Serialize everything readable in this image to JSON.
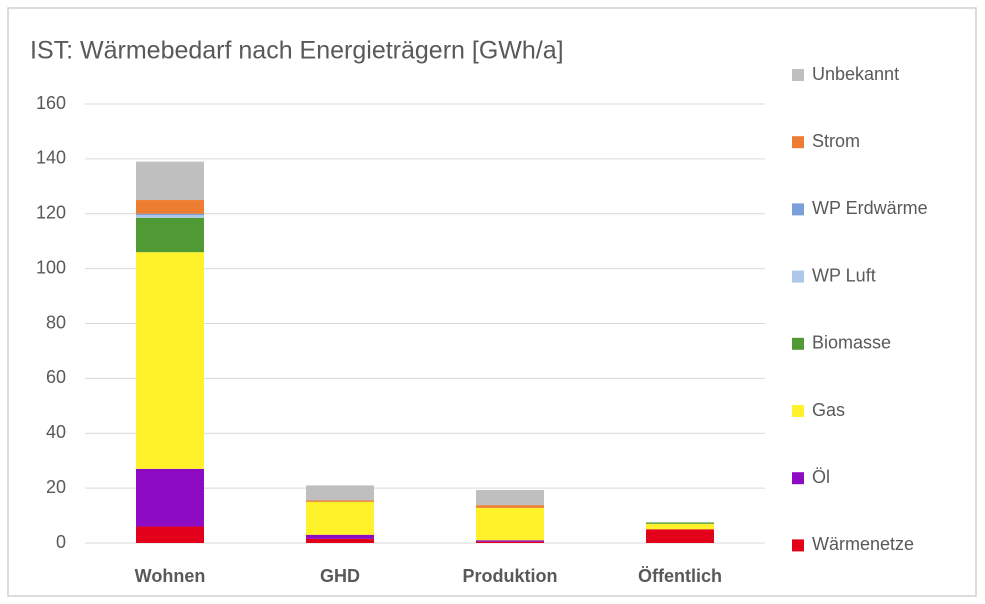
{
  "chart_data": {
    "type": "stacked_bar",
    "title": "IST: Wärmebedarf nach Energieträgern [GWh/a]",
    "categories": [
      "Wohnen",
      "GHD",
      "Produktion",
      "Öffentlich"
    ],
    "series": [
      {
        "name": "Wärmenetze",
        "color": "#e3001b",
        "values": [
          6,
          1.5,
          0.5,
          5
        ]
      },
      {
        "name": "Öl",
        "color": "#8e0bc4",
        "values": [
          21,
          1.5,
          0.5,
          0
        ]
      },
      {
        "name": "Gas",
        "color": "#fff22b",
        "values": [
          79,
          12,
          11.8,
          2
        ]
      },
      {
        "name": "Biomasse",
        "color": "#4f9a35",
        "values": [
          12.5,
          0,
          0,
          0.5
        ]
      },
      {
        "name": "WP Luft",
        "color": "#aec6e8",
        "values": [
          1,
          0,
          0,
          0
        ]
      },
      {
        "name": "WP Erdwärme",
        "color": "#7b9fd9",
        "values": [
          0.5,
          0,
          0,
          0
        ]
      },
      {
        "name": "Strom",
        "color": "#ed7d31",
        "values": [
          5,
          0.5,
          1,
          0
        ]
      },
      {
        "name": "Unbekannt",
        "color": "#bfbfbf",
        "values": [
          14,
          5.5,
          5.5,
          0
        ]
      }
    ],
    "ylim": [
      0,
      160
    ],
    "yticks": [
      0,
      20,
      40,
      60,
      80,
      100,
      120,
      140,
      160
    ],
    "grid": true,
    "legend": "right"
  }
}
